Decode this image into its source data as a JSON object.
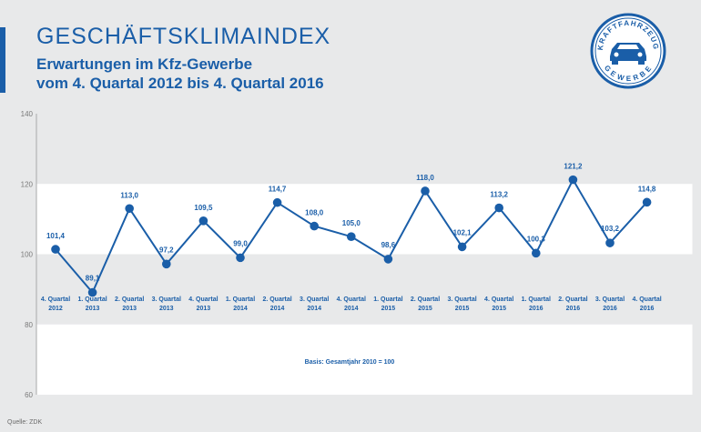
{
  "header": {
    "title": "GESCHÄFTSKLIMAINDEX",
    "subtitle_line1": "Erwartungen im Kfz-Gewerbe",
    "subtitle_line2": "vom 4. Quartal 2012 bis 4. Quartal 2016"
  },
  "logo": {
    "top_text": "KRAFTFAHRZEUG",
    "bottom_text": "GEWERBE",
    "icon": "car-icon"
  },
  "source": "Quelle: ZDK",
  "colors": {
    "accent": "#1a5ea8",
    "background": "#e8e9ea",
    "band": "#ffffff"
  },
  "chart_data": {
    "type": "line",
    "title": "GESCHÄFTSKLIMAINDEX",
    "categories": [
      [
        "4. Quartal",
        "2012"
      ],
      [
        "1. Quartal",
        "2013"
      ],
      [
        "2. Quartal",
        "2013"
      ],
      [
        "3. Quartal",
        "2013"
      ],
      [
        "4. Quartal",
        "2013"
      ],
      [
        "1. Quartal",
        "2014"
      ],
      [
        "2. Quartal",
        "2014"
      ],
      [
        "3. Quartal",
        "2014"
      ],
      [
        "4. Quartal",
        "2014"
      ],
      [
        "1. Quartal",
        "2015"
      ],
      [
        "2. Quartal",
        "2015"
      ],
      [
        "3. Quartal",
        "2015"
      ],
      [
        "4. Quartal",
        "2015"
      ],
      [
        "1. Quartal",
        "2016"
      ],
      [
        "2. Quartal",
        "2016"
      ],
      [
        "3. Quartal",
        "2016"
      ],
      [
        "4. Quartal",
        "2016"
      ]
    ],
    "values": [
      101.4,
      89.1,
      113.0,
      97.2,
      109.5,
      99.0,
      114.7,
      108.0,
      105.0,
      98.6,
      118.0,
      102.1,
      113.2,
      100.3,
      121.2,
      103.2,
      114.8
    ],
    "data_labels": [
      "101,4",
      "89,1",
      "113,0",
      "97,2",
      "109,5",
      "99,0",
      "114,7",
      "108,0",
      "105,0",
      "98,6",
      "118,0",
      "102,1",
      "113,2",
      "100,3",
      "121,2",
      "103,2",
      "114,8"
    ],
    "yticks": [
      "60",
      "80",
      "100",
      "120",
      "140"
    ],
    "ylim": [
      60,
      140
    ],
    "bands": [
      [
        100,
        120
      ],
      [
        60,
        80
      ]
    ],
    "annotation": "Basis: Gesamtjahr 2010 = 100",
    "grid": false,
    "legend": "none"
  }
}
